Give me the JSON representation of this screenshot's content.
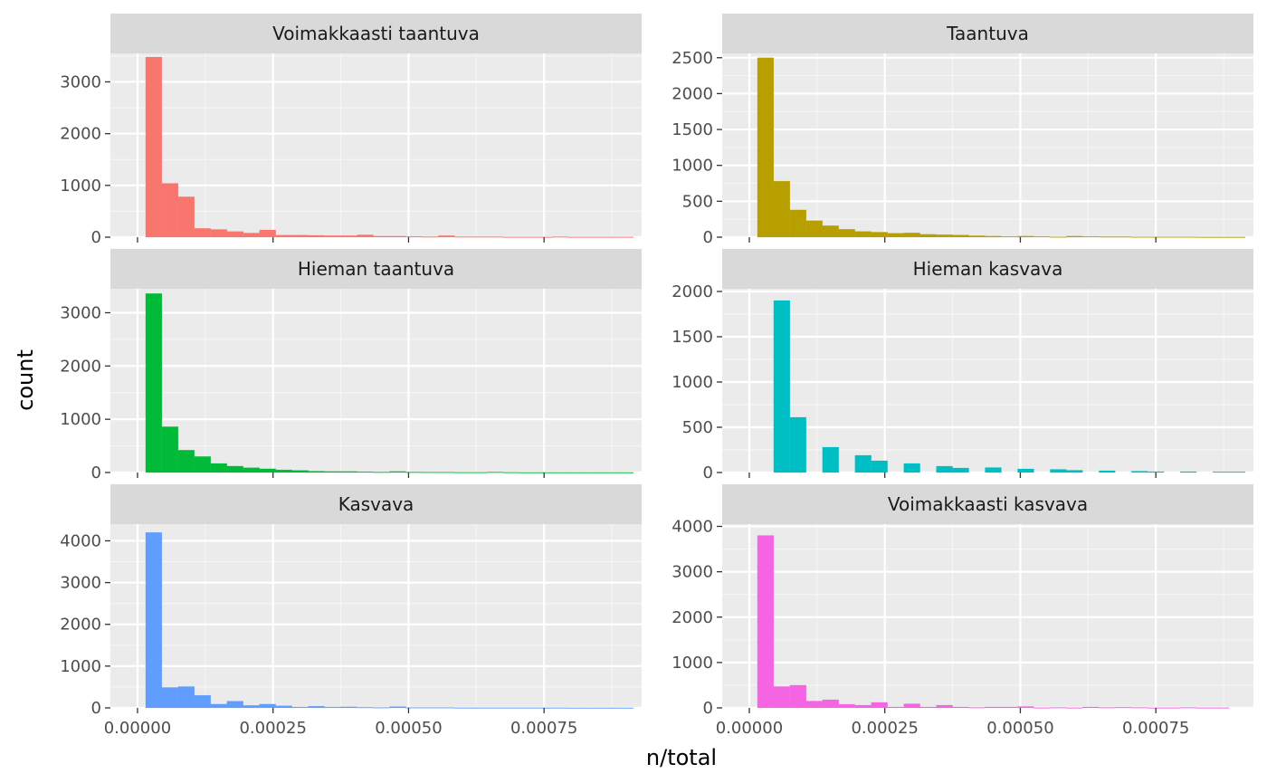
{
  "chart_data": {
    "type": "bar",
    "xlabel": "n/total",
    "ylabel": "count",
    "x_ticks": [
      "0.00000",
      "0.00025",
      "0.00050",
      "0.00075"
    ],
    "x_tick_values": [
      0,
      0.00025,
      0.0005,
      0.00075
    ],
    "xlim": [
      -5e-05,
      0.00093
    ],
    "x_scale_shared": true,
    "grid": true,
    "legend": "none",
    "panels": [
      {
        "title": "Voimakkaasti taantuva",
        "color": "#F8766D",
        "ylim": [
          0,
          3550
        ],
        "y_ticks": [
          0,
          1000,
          2000,
          3000
        ],
        "bin_width": 3e-05,
        "bin_start": 1.5e-05,
        "values": [
          3480,
          1040,
          780,
          170,
          150,
          110,
          80,
          140,
          40,
          40,
          35,
          30,
          30,
          45,
          20,
          20,
          15,
          10,
          30,
          10,
          10,
          10,
          5,
          5,
          5,
          10,
          5,
          5,
          5,
          5
        ]
      },
      {
        "title": "Taantuva",
        "color": "#B79F00",
        "ylim": [
          0,
          2560
        ],
        "y_ticks": [
          0,
          500,
          1000,
          1500,
          2000,
          2500
        ],
        "bin_width": 3e-05,
        "bin_start": 1.5e-05,
        "values": [
          2500,
          780,
          380,
          230,
          160,
          110,
          80,
          70,
          55,
          60,
          40,
          35,
          30,
          20,
          15,
          10,
          15,
          10,
          5,
          15,
          10,
          8,
          8,
          5,
          5,
          5,
          5,
          3,
          3,
          3
        ]
      },
      {
        "title": "Hieman taantuva",
        "color": "#00BA38",
        "ylim": [
          0,
          3450
        ],
        "y_ticks": [
          0,
          1000,
          2000,
          3000
        ],
        "bin_width": 3e-05,
        "bin_start": 1.5e-05,
        "values": [
          3360,
          860,
          420,
          300,
          170,
          120,
          90,
          70,
          50,
          40,
          25,
          20,
          20,
          15,
          10,
          20,
          10,
          8,
          8,
          5,
          5,
          10,
          5,
          3,
          3,
          3,
          3,
          3,
          3,
          3
        ]
      },
      {
        "title": "Hieman kasvava",
        "color": "#00BFC4",
        "ylim": [
          0,
          2030
        ],
        "y_ticks": [
          0,
          500,
          1000,
          1500,
          2000
        ],
        "bin_width": 3e-05,
        "bin_start": 1.5e-05,
        "values": [
          0,
          1900,
          610,
          0,
          280,
          0,
          190,
          130,
          0,
          100,
          0,
          70,
          50,
          0,
          55,
          0,
          40,
          0,
          35,
          25,
          0,
          20,
          0,
          15,
          10,
          0,
          10,
          0,
          8,
          8
        ]
      },
      {
        "title": "Kasvava",
        "color": "#619CFF",
        "ylim": [
          0,
          4400
        ],
        "y_ticks": [
          0,
          1000,
          2000,
          3000,
          4000
        ],
        "bin_width": 3e-05,
        "bin_start": 1.5e-05,
        "values": [
          4200,
          490,
          510,
          300,
          90,
          160,
          60,
          90,
          50,
          20,
          40,
          20,
          25,
          15,
          10,
          30,
          10,
          10,
          10,
          5,
          5,
          5,
          5,
          5,
          5,
          5,
          3,
          3,
          3,
          3
        ]
      },
      {
        "title": "Voimakkaasti kasvava",
        "color": "#F564E3",
        "ylim": [
          0,
          4050
        ],
        "y_ticks": [
          0,
          1000,
          2000,
          3000,
          4000
        ],
        "bin_width": 3e-05,
        "bin_start": 1.5e-05,
        "values": [
          3800,
          470,
          500,
          150,
          180,
          80,
          60,
          120,
          20,
          90,
          20,
          60,
          20,
          10,
          20,
          20,
          30,
          5,
          10,
          5,
          20,
          10,
          15,
          10,
          5,
          5,
          10,
          5,
          5,
          0
        ]
      }
    ]
  }
}
